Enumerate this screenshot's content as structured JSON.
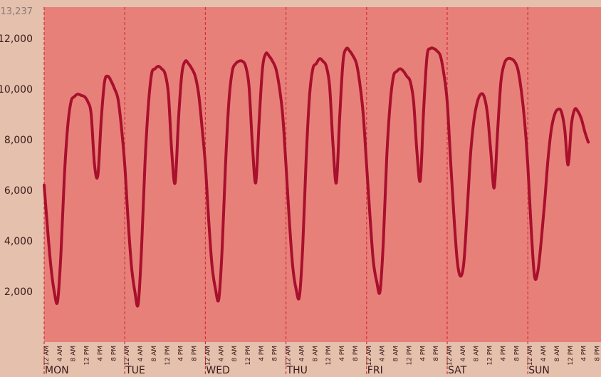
{
  "chart_data": {
    "type": "line",
    "ylim": [
      0,
      13237
    ],
    "y_max_label": "13,237",
    "y_ticks": [
      {
        "value": 2000,
        "label": "2,000"
      },
      {
        "value": 4000,
        "label": "4,000"
      },
      {
        "value": 6000,
        "label": "6,000"
      },
      {
        "value": 8000,
        "label": "8,000"
      },
      {
        "value": 10000,
        "label": "10,000"
      },
      {
        "value": 12000,
        "label": "12,000"
      }
    ],
    "days": [
      "MON",
      "TUE",
      "WED",
      "THU",
      "FRI",
      "SAT",
      "SUN"
    ],
    "hour_labels": [
      "12 AM",
      "4 AM",
      "8 AM",
      "12 PM",
      "4 PM",
      "8 PM"
    ],
    "colors": {
      "plot_bg": "#e8807a",
      "line": "#a8102c",
      "divider": "#d0303c",
      "page_bg": "#e4c0ad"
    },
    "series": [
      {
        "points": [
          [
            0,
            6200
          ],
          [
            1,
            4500
          ],
          [
            2,
            3000
          ],
          [
            3,
            2000
          ],
          [
            4,
            1600
          ],
          [
            5,
            3500
          ],
          [
            6,
            6500
          ],
          [
            7,
            8500
          ],
          [
            8,
            9500
          ],
          [
            9,
            9700
          ],
          [
            10,
            9800
          ],
          [
            11,
            9750
          ],
          [
            12,
            9700
          ],
          [
            13,
            9500
          ],
          [
            14,
            9000
          ],
          [
            15,
            7000
          ],
          [
            16,
            6600
          ],
          [
            17,
            8800
          ],
          [
            18,
            10300
          ],
          [
            19,
            10500
          ],
          [
            20,
            10300
          ],
          [
            21,
            10000
          ],
          [
            22,
            9600
          ],
          [
            23,
            8500
          ],
          [
            24,
            7000
          ],
          [
            25,
            4800
          ],
          [
            26,
            3000
          ],
          [
            27,
            2000
          ],
          [
            28,
            1500
          ],
          [
            29,
            3700
          ],
          [
            30,
            7000
          ],
          [
            31,
            9300
          ],
          [
            32,
            10600
          ],
          [
            33,
            10800
          ],
          [
            34,
            10900
          ],
          [
            35,
            10800
          ],
          [
            36,
            10600
          ],
          [
            37,
            9800
          ],
          [
            38,
            7500
          ],
          [
            39,
            6300
          ],
          [
            40,
            8800
          ],
          [
            41,
            10600
          ],
          [
            42,
            11100
          ],
          [
            43,
            11000
          ],
          [
            44,
            10800
          ],
          [
            45,
            10500
          ],
          [
            46,
            9800
          ],
          [
            47,
            8500
          ],
          [
            48,
            7000
          ],
          [
            49,
            4800
          ],
          [
            50,
            3000
          ],
          [
            51,
            2100
          ],
          [
            52,
            1700
          ],
          [
            53,
            3700
          ],
          [
            54,
            7000
          ],
          [
            55,
            9500
          ],
          [
            56,
            10700
          ],
          [
            57,
            11000
          ],
          [
            58,
            11100
          ],
          [
            59,
            11100
          ],
          [
            60,
            10900
          ],
          [
            61,
            10100
          ],
          [
            62,
            7800
          ],
          [
            63,
            6300
          ],
          [
            64,
            8700
          ],
          [
            65,
            10800
          ],
          [
            66,
            11400
          ],
          [
            67,
            11300
          ],
          [
            68,
            11100
          ],
          [
            69,
            10800
          ],
          [
            70,
            10100
          ],
          [
            71,
            9000
          ],
          [
            72,
            7000
          ],
          [
            73,
            4800
          ],
          [
            74,
            3000
          ],
          [
            75,
            2100
          ],
          [
            76,
            1800
          ],
          [
            77,
            3800
          ],
          [
            78,
            7200
          ],
          [
            79,
            9700
          ],
          [
            80,
            10800
          ],
          [
            81,
            11000
          ],
          [
            82,
            11200
          ],
          [
            83,
            11100
          ],
          [
            84,
            10900
          ],
          [
            85,
            10100
          ],
          [
            86,
            7800
          ],
          [
            87,
            6300
          ],
          [
            88,
            8900
          ],
          [
            89,
            11100
          ],
          [
            90,
            11600
          ],
          [
            91,
            11500
          ],
          [
            92,
            11300
          ],
          [
            93,
            11000
          ],
          [
            94,
            10200
          ],
          [
            95,
            9000
          ],
          [
            96,
            7000
          ],
          [
            97,
            5000
          ],
          [
            98,
            3200
          ],
          [
            99,
            2400
          ],
          [
            100,
            2000
          ],
          [
            101,
            4000
          ],
          [
            102,
            7300
          ],
          [
            103,
            9400
          ],
          [
            104,
            10500
          ],
          [
            105,
            10700
          ],
          [
            106,
            10800
          ],
          [
            107,
            10700
          ],
          [
            108,
            10500
          ],
          [
            109,
            10300
          ],
          [
            110,
            9500
          ],
          [
            111,
            7500
          ],
          [
            112,
            6400
          ],
          [
            113,
            9200
          ],
          [
            114,
            11300
          ],
          [
            115,
            11600
          ],
          [
            116,
            11600
          ],
          [
            117,
            11500
          ],
          [
            118,
            11300
          ],
          [
            119,
            10600
          ],
          [
            120,
            9500
          ],
          [
            121,
            7200
          ],
          [
            122,
            5000
          ],
          [
            123,
            3200
          ],
          [
            124,
            2600
          ],
          [
            125,
            3200
          ],
          [
            126,
            5300
          ],
          [
            127,
            7500
          ],
          [
            128,
            8800
          ],
          [
            129,
            9500
          ],
          [
            130,
            9800
          ],
          [
            131,
            9700
          ],
          [
            132,
            9000
          ],
          [
            133,
            7500
          ],
          [
            134,
            6100
          ],
          [
            135,
            8300
          ],
          [
            136,
            10300
          ],
          [
            137,
            11000
          ],
          [
            138,
            11200
          ],
          [
            139,
            11200
          ],
          [
            140,
            11100
          ],
          [
            141,
            10800
          ],
          [
            142,
            10000
          ],
          [
            143,
            8800
          ],
          [
            144,
            7000
          ],
          [
            145,
            4500
          ],
          [
            146,
            2600
          ],
          [
            147,
            2800
          ],
          [
            148,
            4000
          ],
          [
            149,
            5500
          ],
          [
            150,
            7200
          ],
          [
            151,
            8400
          ],
          [
            152,
            9000
          ],
          [
            153,
            9200
          ],
          [
            154,
            9100
          ],
          [
            155,
            8400
          ],
          [
            156,
            7000
          ],
          [
            157,
            8600
          ],
          [
            158,
            9200
          ],
          [
            159,
            9100
          ],
          [
            160,
            8800
          ],
          [
            161,
            8300
          ],
          [
            162,
            7900
          ]
        ]
      }
    ]
  }
}
